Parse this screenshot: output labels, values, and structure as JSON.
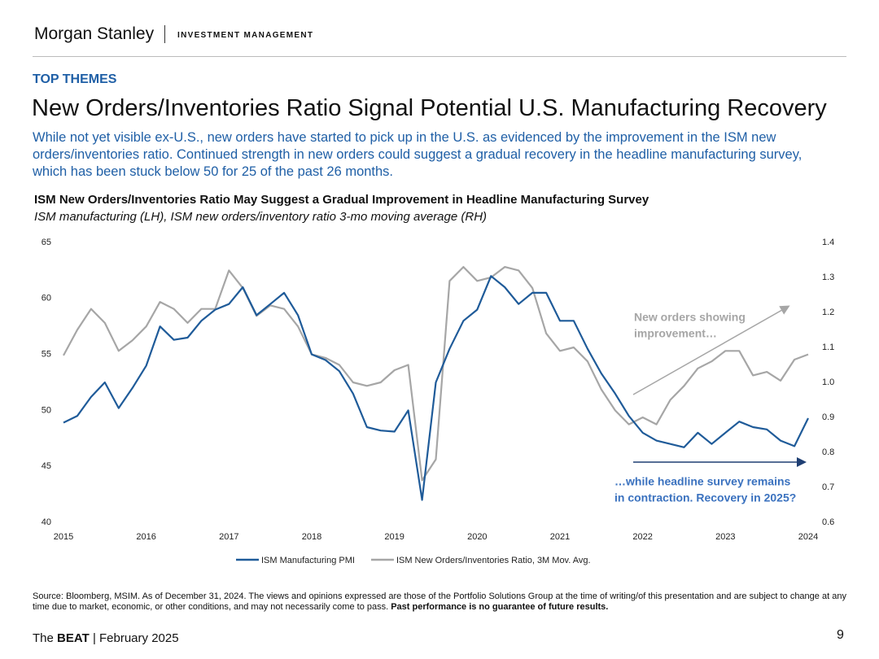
{
  "header": {
    "brand": "Morgan Stanley",
    "division": "INVESTMENT MANAGEMENT",
    "section": "TOP THEMES",
    "headline": "New Orders/Inventories Ratio Signal Potential U.S. Manufacturing Recovery",
    "summary": "While not yet visible ex-U.S., new orders have started to pick up in the U.S. as evidenced by the improvement in the ISM new orders/inventories ratio. Continued strength in new orders could suggest a gradual recovery in the headline manufacturing survey, which has been stuck below 50 for 25 of the past 26 months."
  },
  "chart_data": {
    "type": "line",
    "title": "ISM New Orders/Inventories Ratio May Suggest a Gradual Improvement in Headline Manufacturing Survey",
    "subtitle": "ISM manufacturing (LH), ISM new orders/inventory ratio 3-mo moving average (RH)",
    "categories": [
      "2015",
      null,
      null,
      null,
      null,
      null,
      "2016",
      null,
      null,
      null,
      null,
      null,
      "2017",
      null,
      null,
      null,
      null,
      null,
      "2018",
      null,
      null,
      null,
      null,
      null,
      "2019",
      null,
      null,
      null,
      null,
      null,
      "2020",
      null,
      null,
      null,
      null,
      null,
      "2021",
      null,
      null,
      null,
      null,
      null,
      "2022",
      null,
      null,
      null,
      null,
      null,
      "2023",
      null,
      null,
      null,
      null,
      null,
      "2024"
    ],
    "series": [
      {
        "name": "ISM Manufacturing PMI",
        "color": "#1f5b99",
        "values": [
          48.9,
          49.5,
          51.2,
          52.5,
          50.2,
          52,
          54,
          57.5,
          56.3,
          56.5,
          58,
          59,
          59.5,
          61,
          58.5,
          59.5,
          60.5,
          58.5,
          55,
          54.5,
          53.5,
          51.5,
          48.5,
          48.2,
          48.1,
          50,
          42,
          52.5,
          55.5,
          58,
          59,
          62,
          61,
          59.5,
          60.5,
          60.5,
          58,
          58,
          55.5,
          53.3,
          51.5,
          49.5,
          48,
          47.3,
          47,
          46.7,
          48,
          47,
          48,
          49,
          48.5,
          48.3,
          47.3,
          46.8,
          49.3
        ]
      },
      {
        "name": "ISM New Orders/Inventories Ratio, 3M Mov. Avg.",
        "color": "#a6a6a6",
        "axis": "y2",
        "values": [
          1.077,
          1.15,
          1.21,
          1.17,
          1.09,
          1.12,
          1.16,
          1.23,
          1.21,
          1.17,
          1.21,
          1.21,
          1.32,
          1.27,
          1.19,
          1.22,
          1.21,
          1.16,
          1.08,
          1.07,
          1.05,
          1.0,
          0.99,
          1.0,
          1.035,
          1.05,
          0.72,
          0.78,
          1.29,
          1.33,
          1.29,
          1.3,
          1.33,
          1.32,
          1.27,
          1.14,
          1.09,
          1.1,
          1.06,
          0.98,
          0.92,
          0.88,
          0.9,
          0.88,
          0.95,
          0.99,
          1.04,
          1.06,
          1.09,
          1.09,
          1.02,
          1.03,
          1.005,
          1.065,
          1.08
        ]
      }
    ],
    "ylim": [
      40,
      65
    ],
    "yticks": [
      40,
      45,
      50,
      55,
      60,
      65
    ],
    "y2lim": [
      0.6,
      1.4
    ],
    "y2ticks": [
      0.6,
      0.7,
      0.8,
      0.9,
      {
        "value": 1,
        "label": "1.0"
      },
      1.1,
      1.2,
      1.3,
      1.4
    ],
    "grid": false,
    "legend": "bottom",
    "annotations": [
      {
        "text": [
          "New orders showing",
          "improvement…"
        ],
        "color": "#a6a6a6"
      },
      {
        "text": [
          "…while headline survey remains",
          "in contraction. Recovery in 2025?"
        ],
        "color": "#3b72bf"
      }
    ]
  },
  "footer": {
    "source": "Source: Bloomberg, MSIM. As of December 31, 2024. The views and opinions expressed are those of the Portfolio Solutions Group at the time of writing/of this presentation and are subject to change at any time due to market, economic, or other conditions, and may not necessarily come to pass.",
    "source_bold": "Past performance is no guarantee of future results.",
    "pub_prefix": "The",
    "pub_bold": "BEAT",
    "pub_suffix": "| February 2025",
    "page": "9"
  }
}
